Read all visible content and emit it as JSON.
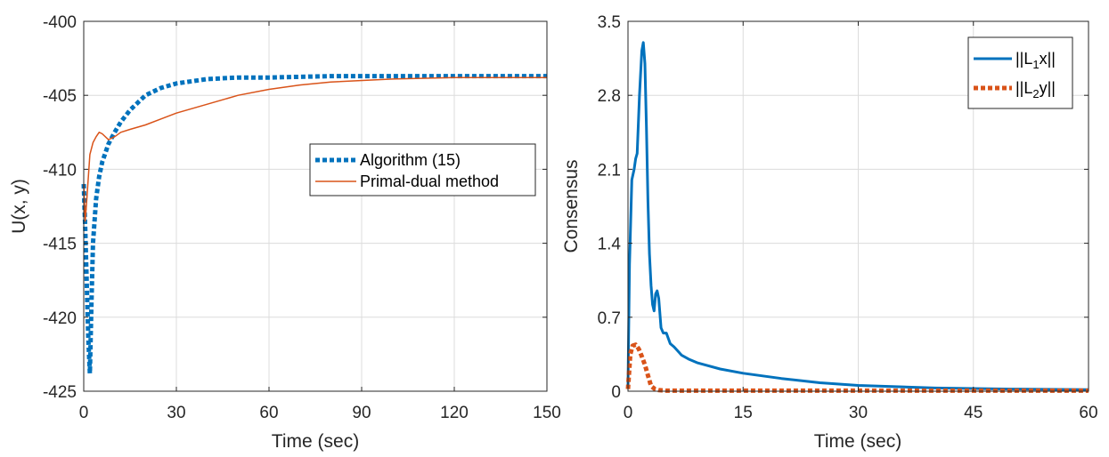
{
  "chart_data": [
    {
      "type": "line",
      "xlabel": "Time (sec)",
      "ylabel": "U(x, y)",
      "xlim": [
        0,
        150
      ],
      "ylim": [
        -425,
        -400
      ],
      "xticks": [
        "0",
        "30",
        "60",
        "90",
        "120",
        "150"
      ],
      "yticks": [
        "-400",
        "-405",
        "-410",
        "-415",
        "-420",
        "-425"
      ],
      "grid": true,
      "legend_position": "right-middle",
      "series": [
        {
          "name": "Algorithm (15)",
          "color": "#0072BD",
          "style": "dotted-thick",
          "x": [
            0,
            0.5,
            1,
            1.5,
            2,
            2.5,
            3,
            4,
            5,
            6,
            8,
            10,
            12,
            15,
            20,
            25,
            30,
            40,
            50,
            60,
            80,
            100,
            120,
            150
          ],
          "y": [
            -411,
            -414,
            -418,
            -421.5,
            -423.8,
            -419,
            -415,
            -412,
            -410.5,
            -409.5,
            -408.3,
            -407.5,
            -406.8,
            -406.0,
            -405.0,
            -404.5,
            -404.2,
            -403.9,
            -403.8,
            -403.8,
            -403.7,
            -403.7,
            -403.7,
            -403.7
          ]
        },
        {
          "name": "Primal-dual method",
          "color": "#D95319",
          "style": "solid-thin",
          "x": [
            0,
            0.5,
            1,
            2,
            3,
            4,
            5,
            6,
            8,
            10,
            12,
            15,
            20,
            25,
            30,
            40,
            50,
            60,
            70,
            80,
            100,
            120,
            150
          ],
          "y": [
            -411,
            -413.5,
            -412,
            -409,
            -408.2,
            -407.8,
            -407.5,
            -407.6,
            -408.0,
            -407.8,
            -407.5,
            -407.3,
            -407.0,
            -406.6,
            -406.2,
            -405.6,
            -405.0,
            -404.6,
            -404.3,
            -404.1,
            -403.9,
            -403.8,
            -403.8
          ]
        }
      ]
    },
    {
      "type": "line",
      "xlabel": "Time (sec)",
      "ylabel": "Consensus",
      "xlim": [
        0,
        60
      ],
      "ylim": [
        0,
        3.5
      ],
      "xticks": [
        "0",
        "15",
        "30",
        "45",
        "60"
      ],
      "yticks": [
        "0",
        "0.7",
        "1.4",
        "2.1",
        "2.8",
        "3.5"
      ],
      "grid": true,
      "legend_position": "top-right",
      "series": [
        {
          "name": "||L1x||",
          "name_base": "||L",
          "name_sub": "1",
          "name_tail": "x||",
          "color": "#0072BD",
          "style": "solid-thick",
          "x": [
            0,
            0.2,
            0.5,
            0.8,
            1.0,
            1.2,
            1.5,
            1.8,
            2.0,
            2.2,
            2.4,
            2.6,
            2.8,
            3.0,
            3.2,
            3.4,
            3.6,
            3.8,
            4.0,
            4.3,
            4.6,
            5.0,
            5.5,
            6.0,
            7,
            8,
            9,
            10,
            12,
            15,
            20,
            25,
            30,
            40,
            50,
            60
          ],
          "y": [
            0.05,
            1.2,
            2.0,
            2.1,
            2.2,
            2.25,
            2.8,
            3.22,
            3.3,
            3.1,
            2.5,
            1.8,
            1.3,
            1.0,
            0.82,
            0.76,
            0.92,
            0.95,
            0.88,
            0.6,
            0.55,
            0.55,
            0.45,
            0.42,
            0.34,
            0.3,
            0.27,
            0.25,
            0.21,
            0.17,
            0.12,
            0.08,
            0.055,
            0.03,
            0.02,
            0.015
          ]
        },
        {
          "name": "||L2y||",
          "name_base": "||L",
          "name_sub": "2",
          "name_tail": "y||",
          "color": "#D95319",
          "style": "dotted-thick",
          "x": [
            0,
            0.3,
            0.6,
            1.0,
            1.4,
            1.8,
            2.2,
            2.6,
            3.0,
            3.5,
            4.0,
            5,
            10,
            20,
            30,
            40,
            50,
            60
          ],
          "y": [
            0.02,
            0.35,
            0.43,
            0.44,
            0.4,
            0.33,
            0.25,
            0.15,
            0.05,
            0.02,
            0.01,
            0.005,
            0.005,
            0.005,
            0.005,
            0.005,
            0.005,
            0.005
          ]
        }
      ]
    }
  ]
}
